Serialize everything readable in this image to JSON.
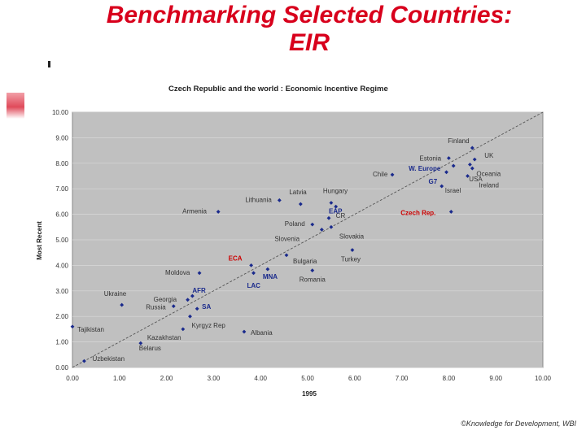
{
  "slide": {
    "title_line1": "Benchmarking Selected Countries:",
    "title_line2": "EIR",
    "credit": "©Knowledge for Development, WBI"
  },
  "colors": {
    "title": "#d8001c",
    "plot_bg": "#c0c0c0",
    "point": "#1a2a8c",
    "highlight": "#cc0000"
  },
  "chart_data": {
    "type": "scatter",
    "title": "Czech Republic and the world : Economic Incentive Regime",
    "xlabel": "1995",
    "ylabel": "Most Recent",
    "xlim": [
      0,
      10
    ],
    "ylim": [
      0,
      10
    ],
    "x_ticks": [
      "0.00",
      "1.00",
      "2.00",
      "3.00",
      "4.00",
      "5.00",
      "6.00",
      "7.00",
      "8.00",
      "9.00",
      "10.00"
    ],
    "y_ticks": [
      "0.00",
      "1.00",
      "2.00",
      "3.00",
      "4.00",
      "5.00",
      "6.00",
      "7.00",
      "8.00",
      "9.00",
      "10.00"
    ],
    "diagonal": true,
    "points": [
      {
        "label": "Finland",
        "x": 8.5,
        "y": 8.6
      },
      {
        "label": "Estonia",
        "x": 8.0,
        "y": 8.2
      },
      {
        "label": "UK",
        "x": 8.55,
        "y": 8.15
      },
      {
        "label": "W. Europe",
        "x": 8.1,
        "y": 7.9,
        "style": "group"
      },
      {
        "label": "Chile",
        "x": 6.8,
        "y": 7.55
      },
      {
        "label": "Oceania",
        "x": 8.45,
        "y": 7.95
      },
      {
        "label": "USA",
        "x": 8.5,
        "y": 7.8
      },
      {
        "label": "G7",
        "x": 7.95,
        "y": 7.65,
        "style": "group"
      },
      {
        "label": "Ireland",
        "x": 8.4,
        "y": 7.5
      },
      {
        "label": "Israel",
        "x": 7.85,
        "y": 7.1
      },
      {
        "label": "Latvia",
        "x": 4.85,
        "y": 6.4
      },
      {
        "label": "Hungary",
        "x": 5.5,
        "y": 6.45
      },
      {
        "label": "Lithuania",
        "x": 4.4,
        "y": 6.55
      },
      {
        "label": "CR",
        "x": 5.6,
        "y": 6.3
      },
      {
        "label": "Czech Rep.",
        "x": 8.05,
        "y": 6.1,
        "style": "highlight"
      },
      {
        "label": "Armenia",
        "x": 3.1,
        "y": 6.1
      },
      {
        "label": "EAP",
        "x": 5.45,
        "y": 5.85,
        "style": "group"
      },
      {
        "label": "Poland",
        "x": 5.1,
        "y": 5.6
      },
      {
        "label": "Slovenia",
        "x": 5.3,
        "y": 5.4
      },
      {
        "label": "Slovakia",
        "x": 5.5,
        "y": 5.5
      },
      {
        "label": "Turkey",
        "x": 5.95,
        "y": 4.6
      },
      {
        "label": "ECA",
        "x": 3.8,
        "y": 4.0,
        "style": "highlight"
      },
      {
        "label": "Bulgaria",
        "x": 4.55,
        "y": 4.4
      },
      {
        "label": "Moldova",
        "x": 2.7,
        "y": 3.7
      },
      {
        "label": "MNA",
        "x": 4.15,
        "y": 3.85,
        "style": "group"
      },
      {
        "label": "Romania",
        "x": 5.1,
        "y": 3.8
      },
      {
        "label": "LAC",
        "x": 3.85,
        "y": 3.7,
        "style": "group"
      },
      {
        "label": "Ukraine",
        "x": 1.05,
        "y": 2.45
      },
      {
        "label": "AFR",
        "x": 2.55,
        "y": 2.8,
        "style": "group"
      },
      {
        "label": "Georgia",
        "x": 2.45,
        "y": 2.65
      },
      {
        "label": "SA",
        "x": 2.65,
        "y": 2.3,
        "style": "group"
      },
      {
        "label": "Russia",
        "x": 2.15,
        "y": 2.4
      },
      {
        "label": "Kyrgyz Rep",
        "x": 2.5,
        "y": 2.0
      },
      {
        "label": "Tajikistan",
        "x": 0.0,
        "y": 1.6
      },
      {
        "label": "Kazakhstan",
        "x": 2.35,
        "y": 1.5
      },
      {
        "label": "Albania",
        "x": 3.65,
        "y": 1.4
      },
      {
        "label": "Belarus",
        "x": 1.45,
        "y": 0.95
      },
      {
        "label": "Uzbekistan",
        "x": 0.25,
        "y": 0.25
      }
    ]
  }
}
